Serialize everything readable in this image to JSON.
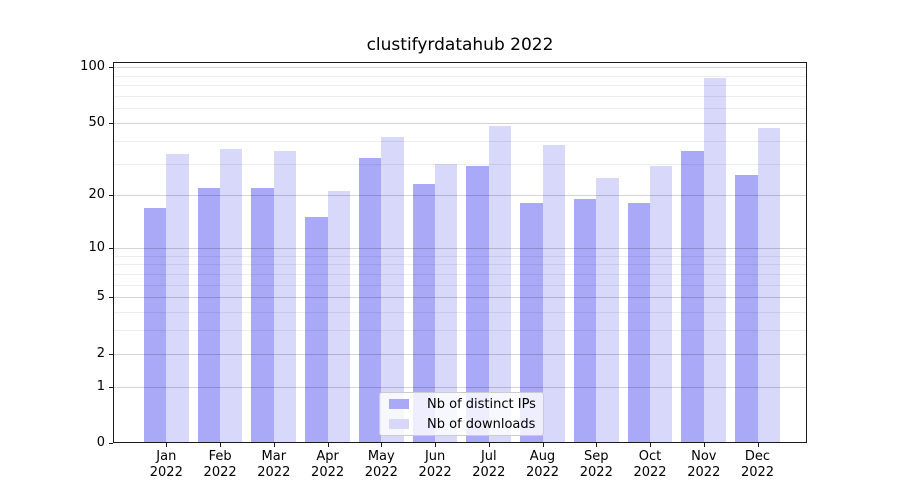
{
  "chart_data": {
    "type": "bar",
    "title": "clustifyrdatahub 2022",
    "categories": [
      "Jan 2022",
      "Feb 2022",
      "Mar 2022",
      "Apr 2022",
      "May 2022",
      "Jun 2022",
      "Jul 2022",
      "Aug 2022",
      "Sep 2022",
      "Oct 2022",
      "Nov 2022",
      "Dec 2022"
    ],
    "x_tick_months": [
      "Jan",
      "Feb",
      "Mar",
      "Apr",
      "May",
      "Jun",
      "Jul",
      "Aug",
      "Sep",
      "Oct",
      "Nov",
      "Dec"
    ],
    "x_tick_year": "2022",
    "series": [
      {
        "name": "Nb of distinct IPs",
        "color": "#a9a9f7",
        "values": [
          17,
          22,
          22,
          15,
          32,
          23,
          29,
          18,
          19,
          18,
          35,
          26
        ]
      },
      {
        "name": "Nb of downloads",
        "color": "#d8d8fb",
        "values": [
          34,
          36,
          35,
          21,
          42,
          30,
          48,
          38,
          25,
          29,
          88,
          47
        ]
      }
    ],
    "xlabel": "",
    "ylabel": "",
    "yscale": "log1p",
    "ylim": [
      0,
      108
    ],
    "y_major_ticks": [
      0,
      1,
      2,
      5,
      10,
      20,
      50,
      100
    ],
    "y_minor_ticks": [
      3,
      4,
      6,
      7,
      8,
      9,
      30,
      40,
      60,
      70,
      80,
      90
    ],
    "grid": true,
    "legend_position": "lower center",
    "colors": {
      "major_grid": "rgba(0,0,0,0.17)",
      "minor_grid": "rgba(0,0,0,0.07)",
      "axis": "#1a1a1a",
      "text": "#000000",
      "background": "#ffffff"
    }
  }
}
